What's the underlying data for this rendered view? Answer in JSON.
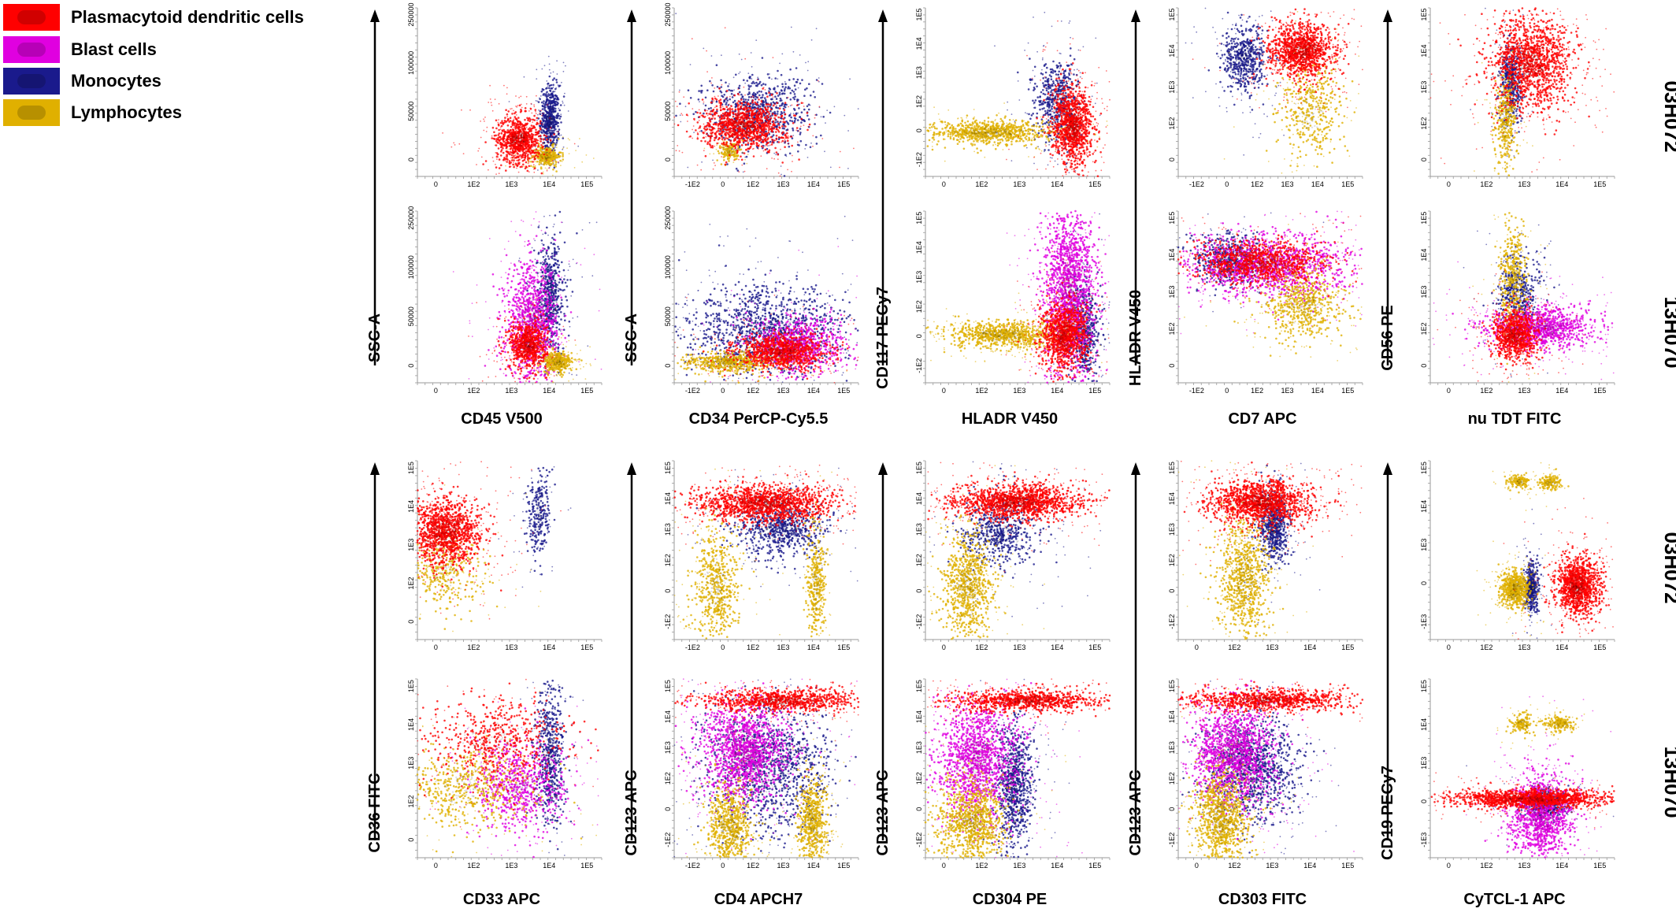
{
  "legend": [
    {
      "label": "Plasmacytoid dendritic cells",
      "color": "#ff0000"
    },
    {
      "label": "Blast cells",
      "color": "#e000e0"
    },
    {
      "label": "Monocytes",
      "color": "#1a1a8c"
    },
    {
      "label": "Lymphocytes",
      "color": "#e0b000"
    }
  ],
  "sample_labels": {
    "a": "03H072",
    "b": "13H070"
  },
  "chart_data": {
    "type": "scatter",
    "plots": [
      {
        "id": "cd45",
        "block": 0,
        "col": 0,
        "xlabel": "CD45 V500",
        "ylabel": "SSC-A",
        "xticks": [
          "0",
          "1E2",
          "1E3",
          "1E4",
          "1E5"
        ],
        "yticks": [
          "0",
          "50000",
          "100000",
          "250000"
        ]
      },
      {
        "id": "cd34",
        "block": 0,
        "col": 1,
        "xlabel": "CD34 PerCP-Cy5.5",
        "ylabel": "SSC-A",
        "xticks": [
          "-1E2",
          "0",
          "1E2",
          "1E3",
          "1E4",
          "1E5"
        ],
        "yticks": [
          "0",
          "50000",
          "100000",
          "250000"
        ]
      },
      {
        "id": "hladr",
        "block": 0,
        "col": 2,
        "xlabel": "HLADR V450",
        "ylabel": "CD117 PECy7",
        "xticks": [
          "0",
          "1E2",
          "1E3",
          "1E4",
          "1E5"
        ],
        "yticks": [
          "-1E2",
          "0",
          "1E2",
          "1E3",
          "1E4",
          "1E5"
        ]
      },
      {
        "id": "cd7",
        "block": 0,
        "col": 3,
        "xlabel": "CD7 APC",
        "ylabel": "HLADR V450",
        "xticks": [
          "-1E2",
          "0",
          "1E2",
          "1E3",
          "1E4",
          "1E5"
        ],
        "yticks": [
          "0",
          "1E2",
          "1E3",
          "1E4",
          "1E5"
        ]
      },
      {
        "id": "tdt",
        "block": 0,
        "col": 4,
        "xlabel": "nu TDT FITC",
        "ylabel": "CD56 PE",
        "xticks": [
          "0",
          "1E2",
          "1E3",
          "1E4",
          "1E5"
        ],
        "yticks": [
          "0",
          "1E2",
          "1E3",
          "1E4",
          "1E5"
        ]
      },
      {
        "id": "cd33",
        "block": 1,
        "col": 0,
        "xlabel": "CD33 APC",
        "ylabel": "CD36 FITC",
        "xticks": [
          "0",
          "1E2",
          "1E3",
          "1E4",
          "1E5"
        ],
        "yticks": [
          "0",
          "1E2",
          "1E3",
          "1E4",
          "1E5"
        ]
      },
      {
        "id": "cd4",
        "block": 1,
        "col": 1,
        "xlabel": "CD4 APCH7",
        "ylabel": "CD123 APC",
        "xticks": [
          "-1E2",
          "0",
          "1E2",
          "1E3",
          "1E4",
          "1E5"
        ],
        "yticks": [
          "-1E2",
          "0",
          "1E2",
          "1E3",
          "1E4",
          "1E5"
        ]
      },
      {
        "id": "cd304",
        "block": 1,
        "col": 2,
        "xlabel": "CD304 PE",
        "ylabel": "CD123 APC",
        "xticks": [
          "0",
          "1E2",
          "1E3",
          "1E4",
          "1E5"
        ],
        "yticks": [
          "-1E2",
          "0",
          "1E2",
          "1E3",
          "1E4",
          "1E5"
        ]
      },
      {
        "id": "cd303",
        "block": 1,
        "col": 3,
        "xlabel": "CD303 FITC",
        "ylabel": "CD123 APC",
        "xticks": [
          "0",
          "1E2",
          "1E3",
          "1E4",
          "1E5"
        ],
        "yticks": [
          "-1E2",
          "0",
          "1E2",
          "1E3",
          "1E4",
          "1E5"
        ]
      },
      {
        "id": "tcl1",
        "block": 1,
        "col": 4,
        "xlabel": "CyTCL-1 APC",
        "ylabel": "CD19 PECy7",
        "xticks": [
          "0",
          "1E2",
          "1E3",
          "1E4",
          "1E5"
        ],
        "yticks": [
          "-1E3",
          "0",
          "1E3",
          "1E4",
          "1E5"
        ]
      }
    ],
    "populations": [
      {
        "plot": "cd45",
        "sample": "03H072",
        "type": "Plasmacytoid dendritic cells",
        "cx": 0.55,
        "cy": 0.22,
        "sx": 0.06,
        "sy": 0.07,
        "n": 700
      },
      {
        "plot": "cd45",
        "sample": "03H072",
        "type": "Monocytes",
        "cx": 0.72,
        "cy": 0.34,
        "sx": 0.025,
        "sy": 0.1,
        "n": 450
      },
      {
        "plot": "cd45",
        "sample": "03H072",
        "type": "Lymphocytes",
        "cx": 0.7,
        "cy": 0.12,
        "sx": 0.04,
        "sy": 0.03,
        "n": 250
      },
      {
        "plot": "cd45",
        "sample": "13H070",
        "type": "Blast cells",
        "cx": 0.62,
        "cy": 0.35,
        "sx": 0.07,
        "sy": 0.17,
        "n": 900
      },
      {
        "plot": "cd45",
        "sample": "13H070",
        "type": "Monocytes",
        "cx": 0.72,
        "cy": 0.5,
        "sx": 0.04,
        "sy": 0.17,
        "n": 500
      },
      {
        "plot": "cd45",
        "sample": "13H070",
        "type": "Plasmacytoid dendritic cells",
        "cx": 0.6,
        "cy": 0.22,
        "sx": 0.05,
        "sy": 0.07,
        "n": 600
      },
      {
        "plot": "cd45",
        "sample": "13H070",
        "type": "Lymphocytes",
        "cx": 0.76,
        "cy": 0.12,
        "sx": 0.04,
        "sy": 0.03,
        "n": 300
      },
      {
        "plot": "cd34",
        "sample": "03H072",
        "type": "Monocytes",
        "cx": 0.45,
        "cy": 0.38,
        "sx": 0.15,
        "sy": 0.11,
        "n": 650
      },
      {
        "plot": "cd34",
        "sample": "03H072",
        "type": "Plasmacytoid dendritic cells",
        "cx": 0.38,
        "cy": 0.3,
        "sx": 0.11,
        "sy": 0.07,
        "n": 900
      },
      {
        "plot": "cd34",
        "sample": "03H072",
        "type": "Lymphocytes",
        "cx": 0.3,
        "cy": 0.15,
        "sx": 0.03,
        "sy": 0.03,
        "n": 120
      },
      {
        "plot": "cd34",
        "sample": "13H070",
        "type": "Monocytes",
        "cx": 0.5,
        "cy": 0.3,
        "sx": 0.22,
        "sy": 0.13,
        "n": 1000
      },
      {
        "plot": "cd34",
        "sample": "13H070",
        "type": "Blast cells",
        "cx": 0.68,
        "cy": 0.22,
        "sx": 0.12,
        "sy": 0.08,
        "n": 700
      },
      {
        "plot": "cd34",
        "sample": "13H070",
        "type": "Plasmacytoid dendritic cells",
        "cx": 0.58,
        "cy": 0.18,
        "sx": 0.12,
        "sy": 0.05,
        "n": 800
      },
      {
        "plot": "cd34",
        "sample": "13H070",
        "type": "Lymphocytes",
        "cx": 0.3,
        "cy": 0.12,
        "sx": 0.12,
        "sy": 0.03,
        "n": 450
      },
      {
        "plot": "hladr",
        "sample": "03H072",
        "type": "Lymphocytes",
        "cx": 0.35,
        "cy": 0.26,
        "sx": 0.17,
        "sy": 0.035,
        "n": 700
      },
      {
        "plot": "hladr",
        "sample": "03H072",
        "type": "Monocytes",
        "cx": 0.72,
        "cy": 0.45,
        "sx": 0.06,
        "sy": 0.12,
        "n": 450
      },
      {
        "plot": "hladr",
        "sample": "03H072",
        "type": "Plasmacytoid dendritic cells",
        "cx": 0.8,
        "cy": 0.3,
        "sx": 0.055,
        "sy": 0.11,
        "n": 900
      },
      {
        "plot": "hladr",
        "sample": "13H070",
        "type": "Blast cells",
        "cx": 0.78,
        "cy": 0.55,
        "sx": 0.07,
        "sy": 0.25,
        "n": 1400
      },
      {
        "plot": "hladr",
        "sample": "13H070",
        "type": "Lymphocytes",
        "cx": 0.42,
        "cy": 0.28,
        "sx": 0.15,
        "sy": 0.04,
        "n": 700
      },
      {
        "plot": "hladr",
        "sample": "13H070",
        "type": "Monocytes",
        "cx": 0.86,
        "cy": 0.3,
        "sx": 0.04,
        "sy": 0.14,
        "n": 450
      },
      {
        "plot": "hladr",
        "sample": "13H070",
        "type": "Plasmacytoid dendritic cells",
        "cx": 0.75,
        "cy": 0.27,
        "sx": 0.06,
        "sy": 0.1,
        "n": 900
      },
      {
        "plot": "cd7",
        "sample": "03H072",
        "type": "Monocytes",
        "cx": 0.36,
        "cy": 0.7,
        "sx": 0.06,
        "sy": 0.1,
        "n": 450
      },
      {
        "plot": "cd7",
        "sample": "03H072",
        "type": "Plasmacytoid dendritic cells",
        "cx": 0.67,
        "cy": 0.75,
        "sx": 0.09,
        "sy": 0.08,
        "n": 1000
      },
      {
        "plot": "cd7",
        "sample": "03H072",
        "type": "Lymphocytes",
        "cx": 0.72,
        "cy": 0.4,
        "sx": 0.08,
        "sy": 0.14,
        "n": 350
      },
      {
        "plot": "cd7",
        "sample": "13H070",
        "type": "Blast cells",
        "cx": 0.5,
        "cy": 0.68,
        "sx": 0.22,
        "sy": 0.09,
        "n": 1100
      },
      {
        "plot": "cd7",
        "sample": "13H070",
        "type": "Monocytes",
        "cx": 0.28,
        "cy": 0.72,
        "sx": 0.09,
        "sy": 0.07,
        "n": 450
      },
      {
        "plot": "cd7",
        "sample": "13H070",
        "type": "Plasmacytoid dendritic cells",
        "cx": 0.45,
        "cy": 0.7,
        "sx": 0.18,
        "sy": 0.06,
        "n": 800
      },
      {
        "plot": "cd7",
        "sample": "13H070",
        "type": "Lymphocytes",
        "cx": 0.68,
        "cy": 0.45,
        "sx": 0.1,
        "sy": 0.1,
        "n": 500
      },
      {
        "plot": "tdt",
        "sample": "03H072",
        "type": "Plasmacytoid dendritic cells",
        "cx": 0.55,
        "cy": 0.68,
        "sx": 0.11,
        "sy": 0.14,
        "n": 1200
      },
      {
        "plot": "tdt",
        "sample": "03H072",
        "type": "Monocytes",
        "cx": 0.44,
        "cy": 0.56,
        "sx": 0.03,
        "sy": 0.12,
        "n": 350
      },
      {
        "plot": "tdt",
        "sample": "03H072",
        "type": "Lymphocytes",
        "cx": 0.41,
        "cy": 0.33,
        "sx": 0.03,
        "sy": 0.13,
        "n": 300
      },
      {
        "plot": "tdt",
        "sample": "13H070",
        "type": "Lymphocytes",
        "cx": 0.45,
        "cy": 0.62,
        "sx": 0.04,
        "sy": 0.15,
        "n": 350
      },
      {
        "plot": "tdt",
        "sample": "13H070",
        "type": "Monocytes",
        "cx": 0.48,
        "cy": 0.52,
        "sx": 0.06,
        "sy": 0.1,
        "n": 350
      },
      {
        "plot": "tdt",
        "sample": "13H070",
        "type": "Blast cells",
        "cx": 0.6,
        "cy": 0.32,
        "sx": 0.14,
        "sy": 0.06,
        "n": 900
      },
      {
        "plot": "tdt",
        "sample": "13H070",
        "type": "Plasmacytoid dendritic cells",
        "cx": 0.46,
        "cy": 0.28,
        "sx": 0.06,
        "sy": 0.07,
        "n": 700
      },
      {
        "plot": "cd33",
        "sample": "03H072",
        "type": "Plasmacytoid dendritic cells",
        "cx": 0.15,
        "cy": 0.6,
        "sx": 0.1,
        "sy": 0.09,
        "n": 1100
      },
      {
        "plot": "cd33",
        "sample": "03H072",
        "type": "Monocytes",
        "cx": 0.66,
        "cy": 0.72,
        "sx": 0.03,
        "sy": 0.12,
        "n": 220
      },
      {
        "plot": "cd33",
        "sample": "03H072",
        "type": "Lymphocytes",
        "cx": 0.15,
        "cy": 0.38,
        "sx": 0.1,
        "sy": 0.1,
        "n": 300
      },
      {
        "plot": "cd33",
        "sample": "13H070",
        "type": "Plasmacytoid dendritic cells",
        "cx": 0.42,
        "cy": 0.65,
        "sx": 0.2,
        "sy": 0.12,
        "n": 500
      },
      {
        "plot": "cd33",
        "sample": "13H070",
        "type": "Blast cells",
        "cx": 0.55,
        "cy": 0.4,
        "sx": 0.12,
        "sy": 0.12,
        "n": 600
      },
      {
        "plot": "cd33",
        "sample": "13H070",
        "type": "Monocytes",
        "cx": 0.72,
        "cy": 0.55,
        "sx": 0.04,
        "sy": 0.2,
        "n": 500
      },
      {
        "plot": "cd33",
        "sample": "13H070",
        "type": "Lymphocytes",
        "cx": 0.25,
        "cy": 0.38,
        "sx": 0.18,
        "sy": 0.12,
        "n": 500
      },
      {
        "plot": "cd4",
        "sample": "03H072",
        "type": "Monocytes",
        "cx": 0.58,
        "cy": 0.62,
        "sx": 0.12,
        "sy": 0.08,
        "n": 600
      },
      {
        "plot": "cd4",
        "sample": "03H072",
        "type": "Plasmacytoid dendritic cells",
        "cx": 0.5,
        "cy": 0.76,
        "sx": 0.18,
        "sy": 0.05,
        "n": 1200
      },
      {
        "plot": "cd4",
        "sample": "03H072",
        "type": "Lymphocytes",
        "cx": 0.23,
        "cy": 0.3,
        "sx": 0.06,
        "sy": 0.16,
        "n": 500
      },
      {
        "plot": "cd4",
        "sample": "03H072",
        "type": "Lymphocytes",
        "cx": 0.77,
        "cy": 0.3,
        "sx": 0.025,
        "sy": 0.16,
        "n": 300
      },
      {
        "plot": "cd4",
        "sample": "13H070",
        "type": "Monocytes",
        "cx": 0.5,
        "cy": 0.5,
        "sx": 0.17,
        "sy": 0.17,
        "n": 1000
      },
      {
        "plot": "cd4",
        "sample": "13H070",
        "type": "Blast cells",
        "cx": 0.38,
        "cy": 0.6,
        "sx": 0.12,
        "sy": 0.13,
        "n": 1200
      },
      {
        "plot": "cd4",
        "sample": "13H070",
        "type": "Plasmacytoid dendritic cells",
        "cx": 0.6,
        "cy": 0.88,
        "sx": 0.22,
        "sy": 0.03,
        "n": 800
      },
      {
        "plot": "cd4",
        "sample": "13H070",
        "type": "Lymphocytes",
        "cx": 0.3,
        "cy": 0.16,
        "sx": 0.06,
        "sy": 0.13,
        "n": 600
      },
      {
        "plot": "cd4",
        "sample": "13H070",
        "type": "Lymphocytes",
        "cx": 0.75,
        "cy": 0.2,
        "sx": 0.04,
        "sy": 0.12,
        "n": 500
      },
      {
        "plot": "cd304",
        "sample": "03H072",
        "type": "Monocytes",
        "cx": 0.4,
        "cy": 0.6,
        "sx": 0.1,
        "sy": 0.1,
        "n": 500
      },
      {
        "plot": "cd304",
        "sample": "03H072",
        "type": "Plasmacytoid dendritic cells",
        "cx": 0.5,
        "cy": 0.77,
        "sx": 0.17,
        "sy": 0.05,
        "n": 1200
      },
      {
        "plot": "cd304",
        "sample": "03H072",
        "type": "Lymphocytes",
        "cx": 0.23,
        "cy": 0.3,
        "sx": 0.07,
        "sy": 0.15,
        "n": 700
      },
      {
        "plot": "cd304",
        "sample": "13H070",
        "type": "Blast cells",
        "cx": 0.28,
        "cy": 0.55,
        "sx": 0.11,
        "sy": 0.17,
        "n": 1200
      },
      {
        "plot": "cd304",
        "sample": "13H070",
        "type": "Monocytes",
        "cx": 0.48,
        "cy": 0.42,
        "sx": 0.05,
        "sy": 0.17,
        "n": 700
      },
      {
        "plot": "cd304",
        "sample": "13H070",
        "type": "Plasmacytoid dendritic cells",
        "cx": 0.55,
        "cy": 0.88,
        "sx": 0.2,
        "sy": 0.03,
        "n": 800
      },
      {
        "plot": "cd304",
        "sample": "13H070",
        "type": "Lymphocytes",
        "cx": 0.25,
        "cy": 0.2,
        "sx": 0.09,
        "sy": 0.12,
        "n": 800
      },
      {
        "plot": "cd303",
        "sample": "03H072",
        "type": "Monocytes",
        "cx": 0.52,
        "cy": 0.63,
        "sx": 0.04,
        "sy": 0.1,
        "n": 500
      },
      {
        "plot": "cd303",
        "sample": "03H072",
        "type": "Plasmacytoid dendritic cells",
        "cx": 0.45,
        "cy": 0.77,
        "sx": 0.13,
        "sy": 0.06,
        "n": 1200
      },
      {
        "plot": "cd303",
        "sample": "03H072",
        "type": "Lymphocytes",
        "cx": 0.36,
        "cy": 0.35,
        "sx": 0.07,
        "sy": 0.17,
        "n": 700
      },
      {
        "plot": "cd303",
        "sample": "13H070",
        "type": "Monocytes",
        "cx": 0.4,
        "cy": 0.5,
        "sx": 0.12,
        "sy": 0.14,
        "n": 900
      },
      {
        "plot": "cd303",
        "sample": "13H070",
        "type": "Blast cells",
        "cx": 0.3,
        "cy": 0.58,
        "sx": 0.11,
        "sy": 0.14,
        "n": 1200
      },
      {
        "plot": "cd303",
        "sample": "13H070",
        "type": "Plasmacytoid dendritic cells",
        "cx": 0.5,
        "cy": 0.88,
        "sx": 0.22,
        "sy": 0.03,
        "n": 800
      },
      {
        "plot": "cd303",
        "sample": "13H070",
        "type": "Lymphocytes",
        "cx": 0.23,
        "cy": 0.22,
        "sx": 0.07,
        "sy": 0.13,
        "n": 800
      },
      {
        "plot": "tcl1",
        "sample": "03H072",
        "type": "Lymphocytes",
        "cx": 0.46,
        "cy": 0.28,
        "sx": 0.04,
        "sy": 0.05,
        "n": 500
      },
      {
        "plot": "tcl1",
        "sample": "03H072",
        "type": "Monocytes",
        "cx": 0.55,
        "cy": 0.3,
        "sx": 0.018,
        "sy": 0.07,
        "n": 350
      },
      {
        "plot": "tcl1",
        "sample": "03H072",
        "type": "Plasmacytoid dendritic cells",
        "cx": 0.8,
        "cy": 0.3,
        "sx": 0.06,
        "sy": 0.08,
        "n": 1000
      },
      {
        "plot": "tcl1",
        "sample": "03H072",
        "type": "Lymphocytes",
        "cx": 0.48,
        "cy": 0.88,
        "sx": 0.03,
        "sy": 0.02,
        "n": 120
      },
      {
        "plot": "tcl1",
        "sample": "03H072",
        "type": "Lymphocytes",
        "cx": 0.65,
        "cy": 0.88,
        "sx": 0.03,
        "sy": 0.02,
        "n": 120
      },
      {
        "plot": "tcl1",
        "sample": "13H070",
        "type": "Blast cells",
        "cx": 0.6,
        "cy": 0.23,
        "sx": 0.08,
        "sy": 0.12,
        "n": 1000
      },
      {
        "plot": "tcl1",
        "sample": "13H070",
        "type": "Monocytes",
        "cx": 0.63,
        "cy": 0.3,
        "sx": 0.06,
        "sy": 0.04,
        "n": 350
      },
      {
        "plot": "tcl1",
        "sample": "13H070",
        "type": "Plasmacytoid dendritic cells",
        "cx": 0.55,
        "cy": 0.33,
        "sx": 0.22,
        "sy": 0.025,
        "n": 1200
      },
      {
        "plot": "tcl1",
        "sample": "13H070",
        "type": "Lymphocytes",
        "cx": 0.5,
        "cy": 0.75,
        "sx": 0.03,
        "sy": 0.03,
        "n": 120
      },
      {
        "plot": "tcl1",
        "sample": "13H070",
        "type": "Lymphocytes",
        "cx": 0.7,
        "cy": 0.75,
        "sx": 0.04,
        "sy": 0.02,
        "n": 150
      }
    ]
  }
}
